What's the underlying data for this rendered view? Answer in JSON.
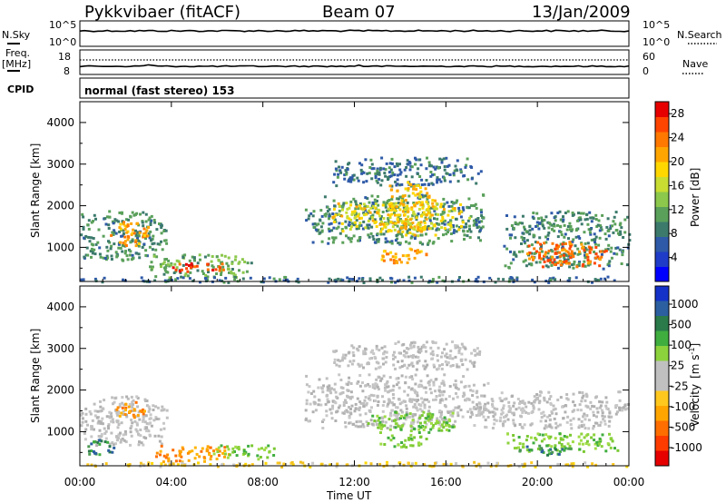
{
  "header": {
    "station": "Pykkvibaer (fitACF)",
    "beam": "Beam 07",
    "date": "13/Jan/2009"
  },
  "aux": {
    "nsky_label": "N.Sky",
    "nsearch_label": "N.Search",
    "nsky_ticks": [
      "10^5",
      "10^0"
    ],
    "nsearch_ticks": [
      "10^5",
      "10^0"
    ],
    "freq_label": "Freq.",
    "freq_unit": "[MHz]",
    "freq_ticks": [
      "18",
      "8"
    ],
    "nave_label": "Nave",
    "nave_ticks": [
      "60",
      "0"
    ],
    "cpid_label": "CPID",
    "cpid_value": "normal (fast stereo) 153"
  },
  "chart_data": [
    {
      "type": "heatmap",
      "name": "power",
      "ylabel": "Slant Range [km]",
      "xlabel": "Time UT",
      "x_ticks": [
        "00:00",
        "04:00",
        "08:00",
        "12:00",
        "16:00",
        "20:00",
        "00:00"
      ],
      "xlim_hours": [
        0,
        24
      ],
      "y_ticks": [
        1000,
        2000,
        3000,
        4000
      ],
      "ylim_km": [
        180,
        4500
      ],
      "colorbar": {
        "label": "Power [dB]",
        "ticks": [
          4,
          8,
          12,
          16,
          20,
          24,
          28
        ],
        "range": [
          0,
          30
        ],
        "colors": [
          "#0000ff",
          "#1e3cc8",
          "#2f5aa8",
          "#3c7a6c",
          "#5aa05a",
          "#8cc84b",
          "#c8dc32",
          "#ffd700",
          "#ffa500",
          "#ff7800",
          "#ff4500",
          "#e60000"
        ]
      },
      "regions": [
        {
          "t0": 0.0,
          "t1": 3.8,
          "r0": 700,
          "r1": 1900,
          "level": 10
        },
        {
          "t0": 1.3,
          "t1": 3.0,
          "r0": 1050,
          "r1": 1650,
          "level": 22
        },
        {
          "t0": 3.0,
          "t1": 7.5,
          "r0": 300,
          "r1": 850,
          "level": 12
        },
        {
          "t0": 4.0,
          "t1": 6.3,
          "r0": 420,
          "r1": 650,
          "level": 27
        },
        {
          "t0": 0.0,
          "t1": 24.0,
          "r0": 180,
          "r1": 320,
          "level": 8
        },
        {
          "t0": 9.8,
          "t1": 17.8,
          "r0": 1100,
          "r1": 2300,
          "level": 10
        },
        {
          "t0": 11.0,
          "t1": 17.0,
          "r0": 1400,
          "r1": 2100,
          "level": 18
        },
        {
          "t0": 11.0,
          "t1": 17.5,
          "r0": 2500,
          "r1": 3200,
          "level": 8
        },
        {
          "t0": 13.5,
          "t1": 15.5,
          "r0": 1300,
          "r1": 2600,
          "level": 20
        },
        {
          "t0": 13.0,
          "t1": 15.2,
          "r0": 650,
          "r1": 1000,
          "level": 22
        },
        {
          "t0": 18.5,
          "t1": 24.0,
          "r0": 500,
          "r1": 1900,
          "level": 10
        },
        {
          "t0": 19.5,
          "t1": 23.0,
          "r0": 550,
          "r1": 1200,
          "level": 25
        }
      ]
    },
    {
      "type": "heatmap",
      "name": "velocity",
      "ylabel": "Slant Range [km]",
      "xlabel": "Time UT",
      "x_ticks": [
        "00:00",
        "04:00",
        "08:00",
        "12:00",
        "16:00",
        "20:00",
        "00:00"
      ],
      "xlim_hours": [
        0,
        24
      ],
      "y_ticks": [
        1000,
        2000,
        3000,
        4000
      ],
      "ylim_km": [
        180,
        4500
      ],
      "colorbar": {
        "label": "Velocity [m s-1]",
        "label_unit": "[m s",
        "label_sup": "-1",
        "label_close": "]",
        "label_title": "Velocity",
        "ticks": [
          1000,
          500,
          100,
          25,
          -25,
          -100,
          -500,
          -1000
        ],
        "colors": [
          "#1432c8",
          "#2b5fa0",
          "#2a7a4a",
          "#3fae3f",
          "#8cd23c",
          "#c0c0c0",
          "#c0c0c0",
          "#ffc81e",
          "#ffa500",
          "#ff6e00",
          "#ff3c00",
          "#e60000"
        ]
      },
      "regions": [
        {
          "t0": 0.0,
          "t1": 3.8,
          "r0": 700,
          "r1": 1900,
          "cls": "gray"
        },
        {
          "t0": 1.5,
          "t1": 2.8,
          "r0": 1350,
          "r1": 1750,
          "cls": "orange"
        },
        {
          "t0": 3.0,
          "t1": 6.5,
          "r0": 300,
          "r1": 700,
          "cls": "orange"
        },
        {
          "t0": 5.8,
          "t1": 8.5,
          "r0": 350,
          "r1": 700,
          "cls": "green"
        },
        {
          "t0": 0.3,
          "t1": 1.5,
          "r0": 450,
          "r1": 850,
          "cls": "darkgreen"
        },
        {
          "t0": 0.0,
          "t1": 24.0,
          "r0": 180,
          "r1": 300,
          "cls": "yellow"
        },
        {
          "t0": 9.8,
          "t1": 17.8,
          "r0": 1100,
          "r1": 2400,
          "cls": "gray"
        },
        {
          "t0": 11.0,
          "t1": 17.5,
          "r0": 2500,
          "r1": 3200,
          "cls": "gray"
        },
        {
          "t0": 12.5,
          "t1": 16.5,
          "r0": 1000,
          "r1": 1500,
          "cls": "green"
        },
        {
          "t0": 13.0,
          "t1": 15.2,
          "r0": 650,
          "r1": 950,
          "cls": "green"
        },
        {
          "t0": 17.0,
          "t1": 24.0,
          "r0": 1100,
          "r1": 2000,
          "cls": "gray"
        },
        {
          "t0": 18.5,
          "t1": 23.5,
          "r0": 550,
          "r1": 1000,
          "cls": "green"
        },
        {
          "t0": 19.0,
          "t1": 21.5,
          "r0": 450,
          "r1": 700,
          "cls": "darkgreen"
        }
      ]
    }
  ]
}
